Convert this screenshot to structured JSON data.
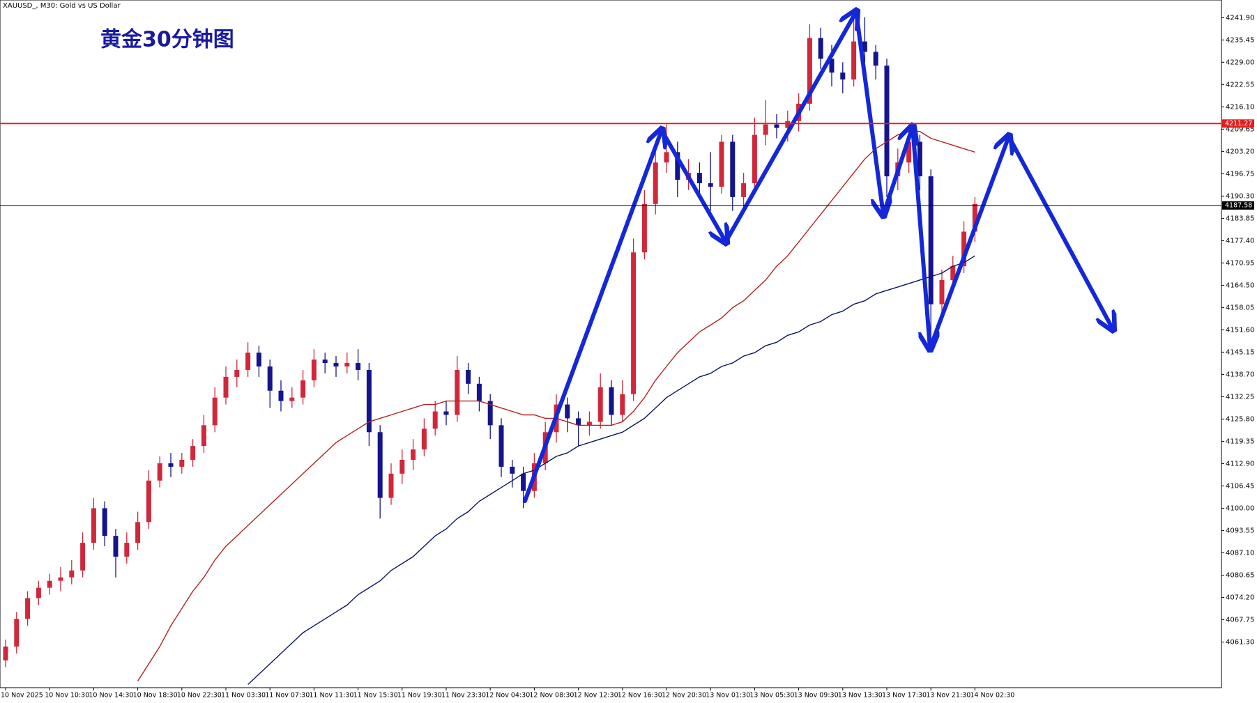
{
  "header": "XAUUSD_, M30:  Gold vs US Dollar",
  "chart_data": {
    "type": "candlestick",
    "title": "黄金30分钟图",
    "categories": [
      "10 Nov 2025",
      null,
      null,
      null,
      "10 Nov 10:30",
      null,
      null,
      null,
      "10 Nov 14:30",
      null,
      null,
      null,
      "10 Nov 18:30",
      null,
      null,
      null,
      "10 Nov 22:30",
      null,
      null,
      null,
      "11 Nov 03:30",
      null,
      null,
      null,
      "11 Nov 07:30",
      null,
      null,
      null,
      "11 Nov 11:30",
      null,
      null,
      null,
      "11 Nov 15:30",
      null,
      null,
      null,
      "11 Nov 19:30",
      null,
      null,
      null,
      "11 Nov 23:30",
      null,
      null,
      null,
      "12 Nov 04:30",
      null,
      null,
      null,
      "12 Nov 08:30",
      null,
      null,
      null,
      "12 Nov 12:30",
      null,
      null,
      null,
      "12 Nov 16:30",
      null,
      null,
      null,
      "12 Nov 20:30",
      null,
      null,
      null,
      "13 Nov 01:30",
      null,
      null,
      null,
      "13 Nov 05:30",
      null,
      null,
      null,
      "13 Nov 09:30",
      null,
      null,
      null,
      "13 Nov 13:30",
      null,
      null,
      null,
      "13 Nov 17:30",
      null,
      null,
      null,
      "13 Nov 21:30",
      null,
      null,
      null,
      "14 Nov 02:30"
    ],
    "open": [
      4056,
      4060,
      4068,
      4074,
      4077,
      4079,
      4080,
      4082,
      4090,
      4100,
      4092,
      4086,
      4090,
      4096,
      4108,
      4113,
      4112,
      4114,
      4118,
      4124,
      4132,
      4138,
      4140,
      4145,
      4141,
      4134,
      4131,
      4132,
      4137,
      4143,
      4142,
      4141,
      4142,
      4140,
      4122,
      4103,
      4110,
      4114,
      4117,
      4123,
      4128,
      4127,
      4140,
      4136,
      4131,
      4124,
      4112,
      4110,
      4105,
      4113,
      4122,
      4130,
      4126,
      4124,
      4125,
      4135,
      4127,
      4133,
      4174,
      4188,
      4200,
      4203,
      4195,
      4197,
      4194,
      4193,
      4206,
      4190,
      4194,
      4208,
      4211,
      4210,
      4212,
      4217,
      4236,
      4230,
      4226,
      4224,
      4235,
      4232,
      4228,
      4196,
      4200,
      4206,
      4196,
      4159,
      4166,
      4170,
      4180
    ],
    "high": [
      4062,
      4070,
      4076,
      4079,
      4081,
      4083,
      4085,
      4093,
      4103,
      4102,
      4094,
      4093,
      4099,
      4111,
      4115,
      4116,
      4116,
      4120,
      4127,
      4135,
      4141,
      4143,
      4148,
      4147,
      4143,
      4137,
      4135,
      4140,
      4146,
      4145,
      4144,
      4145,
      4146,
      4142,
      4124,
      4113,
      4117,
      4120,
      4126,
      4131,
      4131,
      4144,
      4142,
      4138,
      4133,
      4126,
      4114,
      4112,
      4116,
      4125,
      4133,
      4132,
      4128,
      4128,
      4139,
      4137,
      4137,
      4178,
      4192,
      4204,
      4211,
      4206,
      4201,
      4200,
      4203,
      4208,
      4208,
      4197,
      4213,
      4218,
      4214,
      4215,
      4220,
      4240,
      4239,
      4234,
      4229,
      4244,
      4242,
      4234,
      4230,
      4204,
      4211,
      4208,
      4198,
      4169,
      4173,
      4183,
      4190
    ],
    "low": [
      4054,
      4058,
      4066,
      4072,
      4075,
      4076,
      4078,
      4080,
      4088,
      4089,
      4080,
      4084,
      4088,
      4094,
      4106,
      4109,
      4110,
      4112,
      4116,
      4122,
      4130,
      4135,
      4138,
      4138,
      4129,
      4128,
      4129,
      4130,
      4135,
      4139,
      4138,
      4139,
      4137,
      4118,
      4097,
      4101,
      4107,
      4111,
      4115,
      4121,
      4124,
      4125,
      4133,
      4128,
      4120,
      4109,
      4106,
      4100,
      4103,
      4111,
      4119,
      4122,
      4118,
      4121,
      4123,
      4124,
      4125,
      4131,
      4172,
      4185,
      4197,
      4190,
      4192,
      4190,
      4186,
      4191,
      4186,
      4187,
      4192,
      4205,
      4207,
      4206,
      4209,
      4215,
      4227,
      4222,
      4220,
      4222,
      4229,
      4224,
      4190,
      4192,
      4197,
      4192,
      4147,
      4156,
      4163,
      4168,
      4177
    ],
    "close": [
      4060,
      4068,
      4074,
      4077,
      4079,
      4080,
      4082,
      4090,
      4100,
      4092,
      4086,
      4090,
      4096,
      4108,
      4113,
      4112,
      4114,
      4118,
      4124,
      4132,
      4138,
      4140,
      4145,
      4141,
      4134,
      4131,
      4132,
      4137,
      4143,
      4142,
      4141,
      4142,
      4140,
      4122,
      4103,
      4110,
      4114,
      4117,
      4123,
      4128,
      4127,
      4140,
      4136,
      4131,
      4124,
      4112,
      4110,
      4105,
      4113,
      4122,
      4130,
      4126,
      4124,
      4125,
      4135,
      4127,
      4133,
      4174,
      4188,
      4200,
      4203,
      4195,
      4197,
      4194,
      4193,
      4206,
      4190,
      4194,
      4208,
      4211,
      4210,
      4212,
      4217,
      4236,
      4230,
      4226,
      4224,
      4235,
      4232,
      4228,
      4196,
      4200,
      4206,
      4196,
      4159,
      4166,
      4170,
      4180,
      4188
    ],
    "up_color": "#d0283a",
    "down_color": "#14148c",
    "overlays": [
      {
        "color": "#b5201e",
        "values": [
          null,
          null,
          null,
          null,
          null,
          null,
          null,
          null,
          null,
          null,
          null,
          null,
          4050,
          4055,
          4060,
          4066,
          4071,
          4076,
          4080,
          4085,
          4089,
          4092,
          4095,
          4098,
          4101,
          4104,
          4107,
          4110,
          4113,
          4116,
          4119,
          4121,
          4123,
          4125,
          4126,
          4127,
          4128,
          4129,
          4130,
          4130,
          4131,
          4131,
          4131,
          4131,
          4130,
          4129,
          4128,
          4127,
          4127,
          4126,
          4126,
          4125,
          4124,
          4124,
          4124,
          4124,
          4125,
          4128,
          4132,
          4137,
          4141,
          4145,
          4148,
          4151,
          4153,
          4155,
          4158,
          4160,
          4163,
          4166,
          4170,
          4173,
          4177,
          4181,
          4185,
          4189,
          4193,
          4197,
          4201,
          4204,
          4206,
          4208,
          4209,
          4209,
          4207,
          4206,
          4205,
          4204,
          4203
        ]
      },
      {
        "color": "#0a1466",
        "values": [
          null,
          null,
          null,
          null,
          null,
          null,
          null,
          null,
          null,
          null,
          null,
          null,
          null,
          null,
          null,
          null,
          null,
          null,
          null,
          null,
          null,
          null,
          4049,
          4052,
          4055,
          4058,
          4061,
          4064,
          4066,
          4068,
          4070,
          4072,
          4075,
          4077,
          4079,
          4082,
          4084,
          4086,
          4089,
          4092,
          4094,
          4097,
          4099,
          4102,
          4104,
          4106,
          4108,
          4110,
          4111,
          4113,
          4115,
          4116,
          4118,
          4119,
          4120,
          4121,
          4122,
          4124,
          4126,
          4129,
          4132,
          4134,
          4136,
          4138,
          4139,
          4141,
          4142,
          4144,
          4145,
          4147,
          4148,
          4150,
          4151,
          4153,
          4154,
          4156,
          4157,
          4159,
          4160,
          4162,
          4163,
          4164,
          4165,
          4166,
          4167,
          4168,
          4170,
          4171,
          4173
        ]
      }
    ],
    "hlines": [
      {
        "value": 4211.27,
        "color": "#e0201e"
      },
      {
        "value": 4187.58,
        "color": "#000000"
      }
    ],
    "ylim": [
      4048.1,
      4247.0
    ],
    "yticks": [
      {
        "value": 4241.9,
        "label": "4241.90"
      },
      {
        "value": 4235.45,
        "label": "4235.45"
      },
      {
        "value": 4229,
        "label": "4229.00"
      },
      {
        "value": 4222.55,
        "label": "4222.55"
      },
      {
        "value": 4216.1,
        "label": "4216.10"
      },
      {
        "value": 4209.65,
        "label": "4209.65"
      },
      {
        "value": 4203.2,
        "label": "4203.20"
      },
      {
        "value": 4196.75,
        "label": "4196.75"
      },
      {
        "value": 4190.3,
        "label": "4190.30"
      },
      {
        "value": 4183.85,
        "label": "4183.85"
      },
      {
        "value": 4177.4,
        "label": "4177.40"
      },
      {
        "value": 4170.95,
        "label": "4170.95"
      },
      {
        "value": 4164.5,
        "label": "4164.50"
      },
      {
        "value": 4158.05,
        "label": "4158.05"
      },
      {
        "value": 4151.6,
        "label": "4151.60"
      },
      {
        "value": 4145.15,
        "label": "4145.15"
      },
      {
        "value": 4138.7,
        "label": "4138.70"
      },
      {
        "value": 4132.25,
        "label": "4132.25"
      },
      {
        "value": 4125.8,
        "label": "4125.80"
      },
      {
        "value": 4119.35,
        "label": "4119.35"
      },
      {
        "value": 4112.9,
        "label": "4112.90"
      },
      {
        "value": 4106.45,
        "label": "4106.45"
      },
      {
        "value": 4100,
        "label": "4100.00"
      },
      {
        "value": 4093.55,
        "label": "4093.55"
      },
      {
        "value": 4087.1,
        "label": "4087.10"
      },
      {
        "value": 4080.65,
        "label": "4080.65"
      },
      {
        "value": 4074.2,
        "label": "4074.20"
      },
      {
        "value": 4067.75,
        "label": "4067.75"
      },
      {
        "value": 4061.3,
        "label": "4061.30"
      }
    ]
  }
}
